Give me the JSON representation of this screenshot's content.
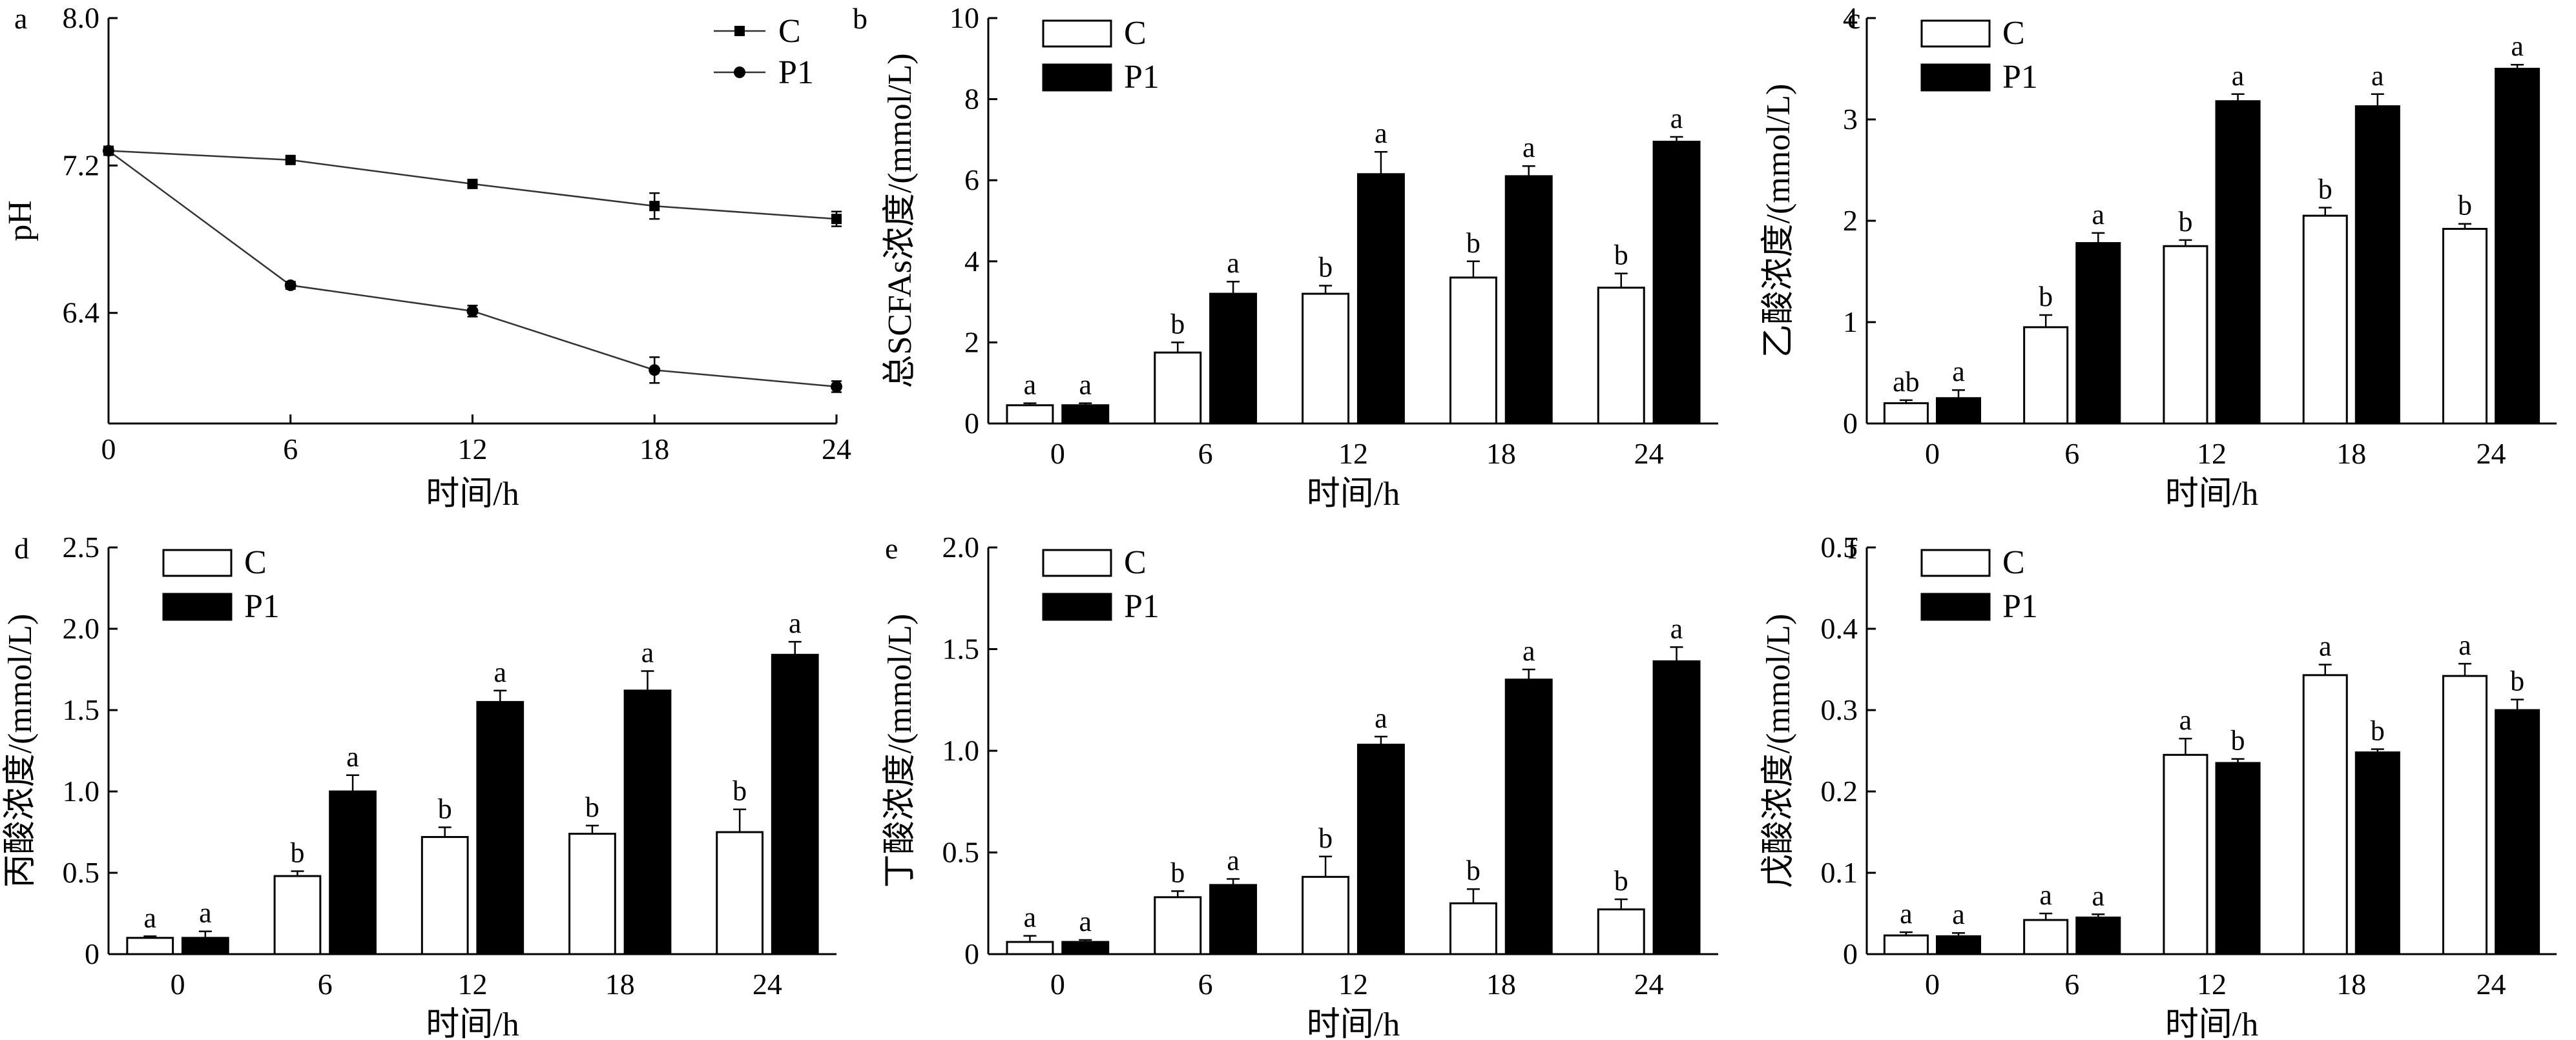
{
  "chart_data": [
    {
      "panel": "a",
      "type": "line",
      "ylabel": "pH",
      "xlabel": "时间/h",
      "x": [
        0,
        6,
        12,
        18,
        24
      ],
      "xlim": [
        0,
        24
      ],
      "ylim": [
        5.8,
        8.0
      ],
      "yticks": [
        6.4,
        7.2,
        8.0
      ],
      "ytick_labels": [
        "6.4",
        "7.2",
        "8.0"
      ],
      "series": [
        {
          "name": "C",
          "marker": "square",
          "values": [
            7.28,
            7.23,
            7.1,
            6.98,
            6.91
          ],
          "errors": [
            0.02,
            0.01,
            0.02,
            0.07,
            0.04
          ]
        },
        {
          "name": "P1",
          "marker": "circle",
          "values": [
            7.28,
            6.55,
            6.41,
            6.09,
            6.0
          ],
          "errors": [
            0.02,
            0.02,
            0.03,
            0.07,
            0.03
          ]
        }
      ],
      "legend": "top-right"
    },
    {
      "panel": "b",
      "type": "bar",
      "ylabel": "总SCFAs浓度/(mmol/L)",
      "xlabel": "时间/h",
      "categories": [
        "0",
        "6",
        "12",
        "18",
        "24"
      ],
      "ylim": [
        0,
        10
      ],
      "yticks": [
        0,
        2,
        4,
        6,
        8,
        10
      ],
      "ytick_labels": [
        "0",
        "2",
        "4",
        "6",
        "8",
        "10"
      ],
      "series": [
        {
          "name": "C",
          "values": [
            0.45,
            1.75,
            3.2,
            3.6,
            3.35
          ],
          "errors": [
            0.05,
            0.25,
            0.2,
            0.4,
            0.35
          ],
          "labels": [
            "a",
            "b",
            "b",
            "b",
            "b"
          ]
        },
        {
          "name": "P1",
          "values": [
            0.45,
            3.2,
            6.15,
            6.1,
            6.95
          ],
          "errors": [
            0.05,
            0.3,
            0.55,
            0.25,
            0.12
          ],
          "labels": [
            "a",
            "a",
            "a",
            "a",
            "a"
          ]
        }
      ],
      "legend": "top-left"
    },
    {
      "panel": "c",
      "type": "bar",
      "ylabel": "乙酸浓度/(mmol/L)",
      "xlabel": "时间/h",
      "categories": [
        "0",
        "6",
        "12",
        "18",
        "24"
      ],
      "ylim": [
        0,
        4
      ],
      "yticks": [
        0,
        1,
        2,
        3,
        4
      ],
      "ytick_labels": [
        "0",
        "1",
        "2",
        "3",
        "4"
      ],
      "series": [
        {
          "name": "C",
          "values": [
            0.2,
            0.95,
            1.75,
            2.05,
            1.92
          ],
          "errors": [
            0.03,
            0.12,
            0.06,
            0.08,
            0.05
          ],
          "labels": [
            "ab",
            "b",
            "b",
            "b",
            "b"
          ]
        },
        {
          "name": "P1",
          "values": [
            0.25,
            1.78,
            3.18,
            3.13,
            3.5
          ],
          "errors": [
            0.08,
            0.1,
            0.07,
            0.12,
            0.04
          ],
          "labels": [
            "a",
            "a",
            "a",
            "a",
            "a"
          ]
        }
      ],
      "legend": "top-left"
    },
    {
      "panel": "d",
      "type": "bar",
      "ylabel": "丙酸浓度/(mmol/L)",
      "xlabel": "时间/h",
      "categories": [
        "0",
        "6",
        "12",
        "18",
        "24"
      ],
      "ylim": [
        0,
        2.5
      ],
      "yticks": [
        0,
        0.5,
        1.0,
        1.5,
        2.0,
        2.5
      ],
      "ytick_labels": [
        "0",
        "0.5",
        "1.0",
        "1.5",
        "2.0",
        "2.5"
      ],
      "series": [
        {
          "name": "C",
          "values": [
            0.1,
            0.48,
            0.72,
            0.74,
            0.75
          ],
          "errors": [
            0.01,
            0.03,
            0.06,
            0.05,
            0.14
          ],
          "labels": [
            "a",
            "b",
            "b",
            "b",
            "b"
          ]
        },
        {
          "name": "P1",
          "values": [
            0.1,
            1.0,
            1.55,
            1.62,
            1.84
          ],
          "errors": [
            0.04,
            0.1,
            0.07,
            0.12,
            0.08
          ],
          "labels": [
            "a",
            "a",
            "a",
            "a",
            "a"
          ]
        }
      ],
      "legend": "top-left"
    },
    {
      "panel": "e",
      "type": "bar",
      "ylabel": "丁酸浓度/(mmol/L)",
      "xlabel": "时间/h",
      "categories": [
        "0",
        "6",
        "12",
        "18",
        "24"
      ],
      "ylim": [
        0,
        2.0
      ],
      "yticks": [
        0,
        0.5,
        1.0,
        1.5,
        2.0
      ],
      "ytick_labels": [
        "0",
        "0.5",
        "1.0",
        "1.5",
        "2.0"
      ],
      "series": [
        {
          "name": "C",
          "values": [
            0.06,
            0.28,
            0.38,
            0.25,
            0.22
          ],
          "errors": [
            0.03,
            0.03,
            0.1,
            0.07,
            0.05
          ],
          "labels": [
            "a",
            "b",
            "b",
            "b",
            "b"
          ]
        },
        {
          "name": "P1",
          "values": [
            0.06,
            0.34,
            1.03,
            1.35,
            1.44
          ],
          "errors": [
            0.01,
            0.03,
            0.04,
            0.05,
            0.07
          ],
          "labels": [
            "a",
            "a",
            "a",
            "a",
            "a"
          ]
        }
      ],
      "legend": "top-left"
    },
    {
      "panel": "f",
      "type": "bar",
      "ylabel": "戊酸浓度/(mmol/L)",
      "xlabel": "时间/h",
      "categories": [
        "0",
        "6",
        "12",
        "18",
        "24"
      ],
      "ylim": [
        0,
        0.5
      ],
      "yticks": [
        0,
        0.1,
        0.2,
        0.3,
        0.4,
        0.5
      ],
      "ytick_labels": [
        "0",
        "0.1",
        "0.2",
        "0.3",
        "0.4",
        "0.5"
      ],
      "series": [
        {
          "name": "C",
          "values": [
            0.023,
            0.042,
            0.245,
            0.343,
            0.342
          ],
          "errors": [
            0.004,
            0.008,
            0.02,
            0.013,
            0.015
          ],
          "labels": [
            "a",
            "a",
            "a",
            "a",
            "a"
          ]
        },
        {
          "name": "P1",
          "values": [
            0.022,
            0.045,
            0.235,
            0.248,
            0.3
          ],
          "errors": [
            0.004,
            0.004,
            0.005,
            0.004,
            0.013
          ],
          "labels": [
            "a",
            "a",
            "b",
            "b",
            "b"
          ]
        }
      ],
      "legend": "top-left"
    }
  ]
}
